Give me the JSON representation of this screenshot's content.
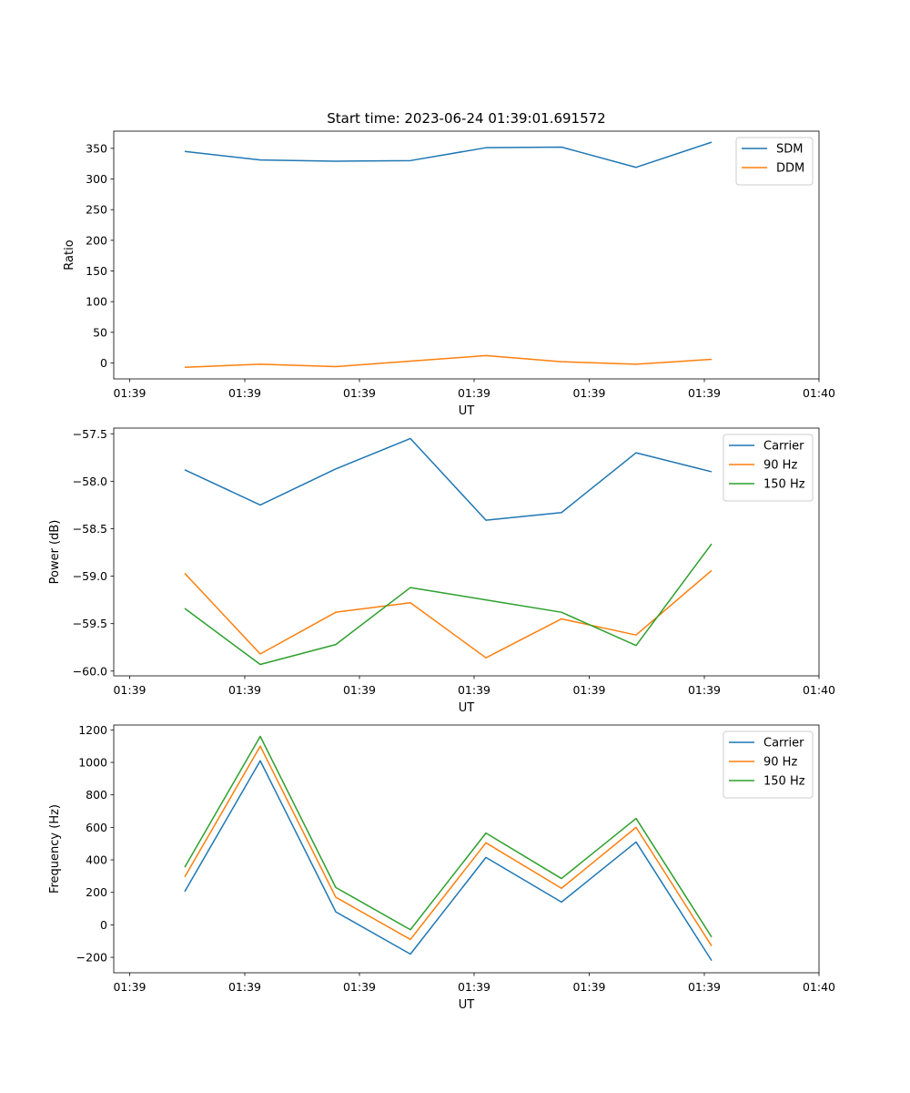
{
  "figure": {
    "title": "Start time: 2023-06-24 01:39:01.691572"
  },
  "chart_data": [
    {
      "type": "line",
      "title": "Start time: 2023-06-24 01:39:01.691572",
      "xlabel": "UT",
      "ylabel": "Ratio",
      "ylim": [
        -26,
        378
      ],
      "yticks": [
        0,
        50,
        100,
        150,
        200,
        250,
        300,
        350
      ],
      "xtick_labels": [
        "01:39",
        "01:39",
        "01:39",
        "01:39",
        "01:39",
        "01:39",
        "01:39",
        "01:40"
      ],
      "legend_position": "top-right",
      "series": [
        {
          "name": "SDM",
          "color": "#1f77b4",
          "values": [
            345,
            331,
            329,
            330,
            351,
            352,
            319,
            360
          ]
        },
        {
          "name": "DDM",
          "color": "#ff7f0e",
          "values": [
            -7,
            -2,
            -6,
            3,
            12,
            2,
            -2,
            6
          ]
        }
      ]
    },
    {
      "type": "line",
      "title": "",
      "xlabel": "UT",
      "ylabel": "Power (dB)",
      "ylim": [
        -60.05,
        -57.44
      ],
      "yticks": [
        -60.0,
        -59.5,
        -59.0,
        -58.5,
        -58.0,
        -57.5
      ],
      "ytick_labels": [
        "−60.0",
        "−59.5",
        "−59.0",
        "−58.5",
        "−58.0",
        "−57.5"
      ],
      "xtick_labels": [
        "01:39",
        "01:39",
        "01:39",
        "01:39",
        "01:39",
        "01:39",
        "01:39",
        "01:40"
      ],
      "legend_position": "top-right",
      "series": [
        {
          "name": "Carrier",
          "color": "#1f77b4",
          "values": [
            -57.88,
            -58.25,
            -57.87,
            -57.55,
            -58.41,
            -58.33,
            -57.7,
            -57.9
          ]
        },
        {
          "name": "90 Hz",
          "color": "#ff7f0e",
          "values": [
            -58.97,
            -59.82,
            -59.38,
            -59.28,
            -59.86,
            -59.45,
            -59.62,
            -58.94
          ]
        },
        {
          "name": "150 Hz",
          "color": "#2ca02c",
          "values": [
            -59.34,
            -59.93,
            -59.72,
            -59.12,
            -59.25,
            -59.38,
            -59.73,
            -58.66
          ]
        }
      ]
    },
    {
      "type": "line",
      "title": "",
      "xlabel": "UT",
      "ylabel": "Frequency (Hz)",
      "ylim": [
        -295,
        1230
      ],
      "yticks": [
        -200,
        0,
        200,
        400,
        600,
        800,
        1000,
        1200
      ],
      "ytick_labels": [
        "−200",
        "0",
        "200",
        "400",
        "600",
        "800",
        "1000",
        "1200"
      ],
      "xtick_labels": [
        "01:39",
        "01:39",
        "01:39",
        "01:39",
        "01:39",
        "01:39",
        "01:39",
        "01:40"
      ],
      "legend_position": "top-right",
      "series": [
        {
          "name": "Carrier",
          "color": "#1f77b4",
          "values": [
            205,
            1010,
            80,
            -180,
            415,
            140,
            510,
            -220
          ]
        },
        {
          "name": "90 Hz",
          "color": "#ff7f0e",
          "values": [
            295,
            1100,
            170,
            -90,
            505,
            225,
            600,
            -130
          ]
        },
        {
          "name": "150 Hz",
          "color": "#2ca02c",
          "values": [
            355,
            1160,
            230,
            -30,
            565,
            285,
            655,
            -75
          ]
        }
      ]
    }
  ]
}
